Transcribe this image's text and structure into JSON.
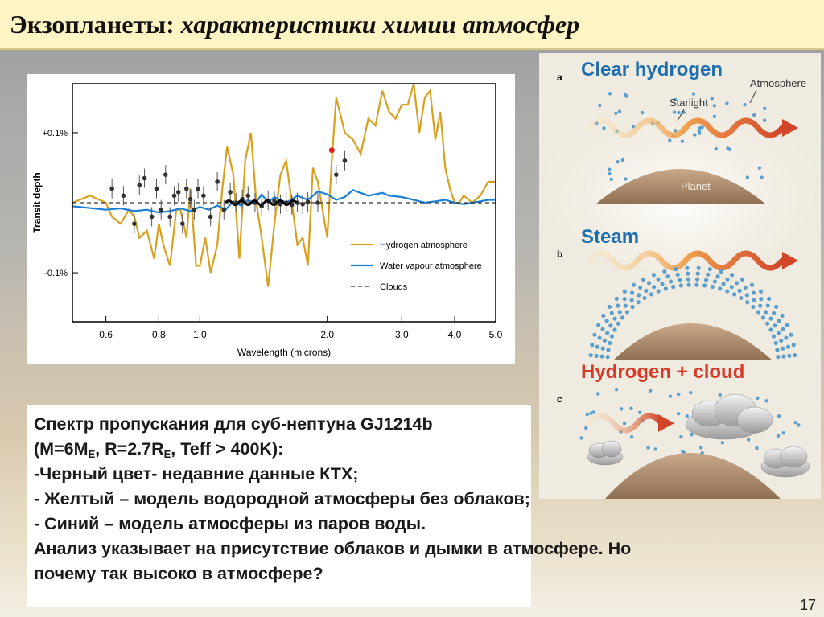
{
  "slide": {
    "title_main": "Экзопланеты:",
    "title_italic": "характеристики химии атмосфер",
    "page_number": "17"
  },
  "chart_data": {
    "type": "line",
    "xlabel": "Wavelength (microns)",
    "ylabel": "Transit depth",
    "x_scale": "log",
    "x_ticks": [
      "0.6",
      "0.8",
      "1.0",
      "2.0",
      "3.0",
      "4.0",
      "5.0"
    ],
    "y_ticks": [
      "+0.1%",
      "-0.1%"
    ],
    "xlim": [
      0.5,
      5.0
    ],
    "ylim": [
      -0.17,
      0.17
    ],
    "legend_position": "lower-right",
    "series": [
      {
        "name": "Hydrogen atmosphere",
        "color": "#d9a020",
        "style": "solid",
        "x": [
          0.5,
          0.55,
          0.6,
          0.62,
          0.65,
          0.68,
          0.7,
          0.72,
          0.75,
          0.78,
          0.8,
          0.82,
          0.85,
          0.88,
          0.9,
          0.93,
          0.95,
          0.98,
          1.0,
          1.03,
          1.06,
          1.1,
          1.13,
          1.16,
          1.2,
          1.24,
          1.28,
          1.32,
          1.36,
          1.4,
          1.45,
          1.5,
          1.55,
          1.6,
          1.65,
          1.7,
          1.75,
          1.8,
          1.85,
          1.9,
          2.0,
          2.05,
          2.1,
          2.2,
          2.3,
          2.4,
          2.5,
          2.6,
          2.7,
          2.8,
          2.9,
          3.0,
          3.1,
          3.2,
          3.3,
          3.4,
          3.5,
          3.6,
          3.7,
          3.8,
          3.9,
          4.0,
          4.1,
          4.2,
          4.4,
          4.6,
          4.8,
          5.0
        ],
        "y": [
          0.0,
          0.01,
          0.0,
          -0.02,
          -0.03,
          -0.01,
          -0.02,
          -0.05,
          -0.04,
          -0.08,
          -0.03,
          -0.06,
          -0.09,
          -0.01,
          -0.01,
          -0.05,
          0.02,
          -0.09,
          -0.09,
          -0.05,
          -0.1,
          -0.06,
          0.02,
          0.08,
          0.04,
          -0.08,
          0.06,
          0.1,
          0.0,
          -0.05,
          -0.12,
          -0.03,
          0.04,
          0.06,
          0.0,
          -0.06,
          -0.05,
          -0.09,
          0.05,
          0.03,
          -0.05,
          0.06,
          0.15,
          0.1,
          0.09,
          0.07,
          0.12,
          0.11,
          0.16,
          0.13,
          0.12,
          0.14,
          0.14,
          0.17,
          0.1,
          0.15,
          0.16,
          0.09,
          0.13,
          0.05,
          0.02,
          0.0,
          0.0,
          0.01,
          0.0,
          0.01,
          0.03,
          0.03
        ]
      },
      {
        "name": "Water vapour atmosphere",
        "color": "#1a7fd8",
        "style": "solid",
        "x": [
          0.5,
          0.6,
          0.65,
          0.7,
          0.75,
          0.8,
          0.85,
          0.9,
          0.95,
          1.0,
          1.05,
          1.1,
          1.15,
          1.2,
          1.25,
          1.3,
          1.35,
          1.4,
          1.45,
          1.5,
          1.6,
          1.7,
          1.8,
          1.9,
          2.0,
          2.1,
          2.2,
          2.3,
          2.5,
          2.7,
          2.8,
          3.0,
          3.2,
          3.4,
          3.6,
          3.8,
          4.0,
          4.2,
          4.4,
          4.6,
          4.8,
          5.0
        ],
        "y": [
          -0.005,
          -0.01,
          -0.008,
          -0.012,
          -0.01,
          -0.014,
          -0.012,
          -0.008,
          -0.012,
          -0.006,
          -0.01,
          -0.004,
          -0.01,
          0.002,
          -0.004,
          0.004,
          -0.002,
          0.012,
          0.0,
          0.008,
          0.0,
          0.01,
          0.004,
          0.016,
          0.012,
          0.004,
          0.008,
          0.018,
          0.01,
          0.014,
          0.01,
          0.008,
          0.004,
          0.0,
          0.002,
          0.004,
          0.0,
          -0.002,
          0.0,
          0.002,
          0.004,
          0.004
        ]
      },
      {
        "name": "Clouds",
        "color": "#333333",
        "style": "dashed",
        "x": [
          0.5,
          5.0
        ],
        "y": [
          0.0,
          0.0
        ]
      },
      {
        "name": "Data",
        "color": "#000000",
        "style": "points",
        "x": [
          0.62,
          0.66,
          0.7,
          0.72,
          0.74,
          0.77,
          0.79,
          0.81,
          0.83,
          0.85,
          0.87,
          0.89,
          0.91,
          0.93,
          0.95,
          0.97,
          0.99,
          1.02,
          1.06,
          1.1,
          1.14,
          1.18,
          1.22,
          1.26,
          1.3,
          1.35,
          1.4,
          1.45,
          1.5,
          1.55,
          1.6,
          1.65,
          1.7,
          1.75,
          1.8,
          1.9,
          2.1,
          2.2
        ],
        "y": [
          0.02,
          0.01,
          -0.03,
          0.025,
          0.035,
          -0.02,
          0.02,
          -0.01,
          0.04,
          -0.02,
          0.01,
          0.015,
          -0.03,
          0.02,
          0.005,
          -0.01,
          0.02,
          0.01,
          -0.02,
          0.03,
          -0.01,
          0.015,
          0.0,
          0.005,
          0.01,
          0.0,
          -0.005,
          0.003,
          0.002,
          -0.002,
          0.0,
          -0.003,
          0.0,
          -0.002,
          0.001,
          0.0,
          0.04,
          0.06
        ]
      }
    ]
  },
  "illustration": {
    "label_a": "a",
    "label_b": "b",
    "label_c": "c",
    "title_a": "Clear hydrogen",
    "title_b": "Steam",
    "title_c": "Hydrogen + cloud",
    "atmosphere_label": "Atmosphere",
    "starlight_label": "Starlight",
    "planet_label": "Planet",
    "title_colors": {
      "a": "#1f6fb0",
      "b": "#1f6fb0",
      "c": "#d83a2a"
    }
  },
  "text": {
    "line1": "Спектр пропускания для суб-нептуна GJ1214b",
    "line2_open": "(M=6M",
    "sub_e1": "E",
    "line2_mid": ", R=2.7R",
    "sub_e2": "E",
    "line2_close": ", Teff > 400K):",
    "line3": "-Черный цвет- недавние данные КТХ;",
    "line4": "- Желтый – модель водородной атмосферы без облаков;",
    "line5": "- Синий – модель атмосферы из паров воды.",
    "line6": "Анализ указывает на присутствие облаков и дымки в атмосфере. Но",
    "line7": "почему так высоко в атмосфере?"
  }
}
